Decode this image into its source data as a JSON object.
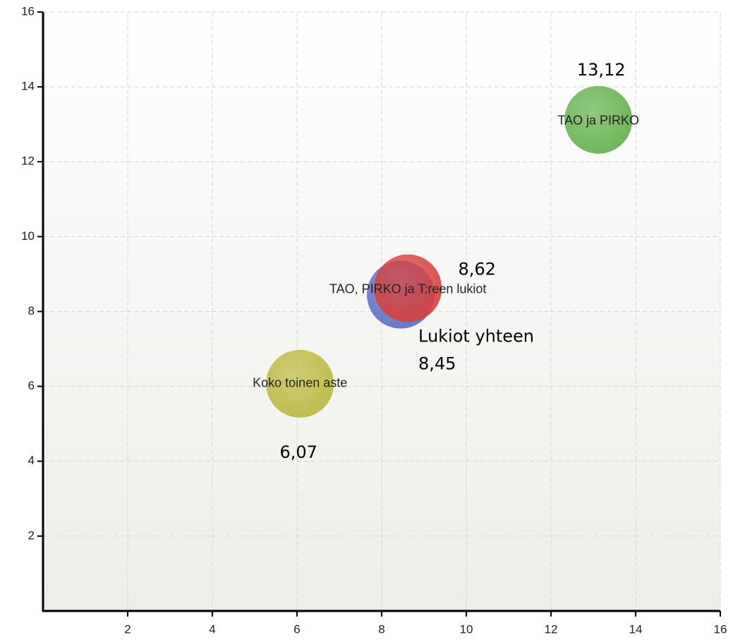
{
  "chart_data": {
    "type": "bubble",
    "xlim": [
      0,
      16
    ],
    "xticks": [
      2,
      4,
      6,
      8,
      10,
      12,
      14,
      16
    ],
    "ylim": [
      0,
      16
    ],
    "yticks": [
      2,
      4,
      6,
      8,
      10,
      12,
      14,
      16
    ],
    "grid": true,
    "series": [
      {
        "name": "Lukiot yhteen",
        "color": "#5b6cc4",
        "x": [
          8.45
        ],
        "values": [
          8.45
        ],
        "value_labels": [
          "8,45"
        ]
      },
      {
        "name": "TAO, PIRKO ja T:reen lukiot",
        "color": "#d8403a",
        "x": [
          8.62
        ],
        "values": [
          8.62
        ],
        "value_labels": [
          "8,62"
        ]
      },
      {
        "name": "Koko toinen aste",
        "color": "#bdb840",
        "x": [
          6.07
        ],
        "values": [
          6.07
        ],
        "value_labels": [
          "6,07"
        ]
      },
      {
        "name": "TAO ja PIRKO",
        "color": "#62b04a",
        "x": [
          13.12
        ],
        "values": [
          13.12
        ],
        "value_labels": [
          "13,12"
        ]
      }
    ]
  }
}
